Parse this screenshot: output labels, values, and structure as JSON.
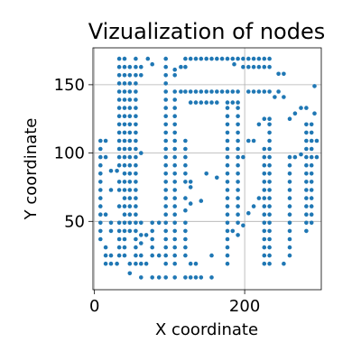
{
  "chart_data": {
    "type": "scatter",
    "title": "Vizualization of nodes",
    "xlabel": "X coordinate",
    "ylabel": "Y coordinate",
    "xlim": [
      -2,
      302
    ],
    "ylim": [
      0,
      177
    ],
    "xticks": [
      0,
      200
    ],
    "yticks": [
      50,
      100,
      150
    ],
    "xtick_labels": [
      "0",
      "200"
    ],
    "ytick_labels": [
      "50",
      "100",
      "150"
    ],
    "grid": true,
    "marker_color": "#1f77b4",
    "points": [
      [
        33,
        169
      ],
      [
        40,
        169
      ],
      [
        55,
        169
      ],
      [
        71,
        169
      ],
      [
        77,
        165
      ],
      [
        95,
        169
      ],
      [
        121,
        169
      ],
      [
        128,
        169
      ],
      [
        135,
        169
      ],
      [
        142,
        169
      ],
      [
        149,
        169
      ],
      [
        156,
        169
      ],
      [
        163,
        169
      ],
      [
        170,
        169
      ],
      [
        177,
        169
      ],
      [
        184,
        169
      ],
      [
        191,
        169
      ],
      [
        198,
        169
      ],
      [
        205,
        169
      ],
      [
        212,
        169
      ],
      [
        219,
        169
      ],
      [
        226,
        169
      ],
      [
        233,
        169
      ],
      [
        33,
        163
      ],
      [
        40,
        163
      ],
      [
        47,
        163
      ],
      [
        55,
        163
      ],
      [
        62,
        163
      ],
      [
        95,
        163
      ],
      [
        107,
        161
      ],
      [
        115,
        163
      ],
      [
        121,
        163
      ],
      [
        186,
        165
      ],
      [
        198,
        163
      ],
      [
        205,
        163
      ],
      [
        212,
        163
      ],
      [
        219,
        163
      ],
      [
        226,
        163
      ],
      [
        233,
        163
      ],
      [
        33,
        157
      ],
      [
        40,
        157
      ],
      [
        47,
        157
      ],
      [
        55,
        157
      ],
      [
        62,
        157
      ],
      [
        95,
        157
      ],
      [
        107,
        157
      ],
      [
        245,
        158
      ],
      [
        252,
        158
      ],
      [
        293,
        149
      ],
      [
        33,
        151
      ],
      [
        40,
        151
      ],
      [
        47,
        151
      ],
      [
        55,
        151
      ],
      [
        95,
        151
      ],
      [
        33,
        145
      ],
      [
        40,
        145
      ],
      [
        47,
        145
      ],
      [
        55,
        145
      ],
      [
        95,
        145
      ],
      [
        107,
        145
      ],
      [
        115,
        145
      ],
      [
        121,
        145
      ],
      [
        128,
        145
      ],
      [
        135,
        145
      ],
      [
        142,
        145
      ],
      [
        149,
        145
      ],
      [
        156,
        145
      ],
      [
        163,
        145
      ],
      [
        170,
        145
      ],
      [
        177,
        145
      ],
      [
        184,
        145
      ],
      [
        191,
        145
      ],
      [
        205,
        145
      ],
      [
        212,
        145
      ],
      [
        219,
        145
      ],
      [
        226,
        145
      ],
      [
        233,
        145
      ],
      [
        240,
        141
      ],
      [
        245,
        145
      ],
      [
        252,
        141
      ],
      [
        33,
        139
      ],
      [
        40,
        139
      ],
      [
        47,
        139
      ],
      [
        55,
        139
      ],
      [
        95,
        139
      ],
      [
        107,
        139
      ],
      [
        128,
        137
      ],
      [
        135,
        137
      ],
      [
        142,
        137
      ],
      [
        149,
        137
      ],
      [
        156,
        137
      ],
      [
        163,
        137
      ],
      [
        177,
        137
      ],
      [
        184,
        137
      ],
      [
        191,
        137
      ],
      [
        33,
        133
      ],
      [
        40,
        133
      ],
      [
        47,
        133
      ],
      [
        55,
        133
      ],
      [
        95,
        133
      ],
      [
        107,
        133
      ],
      [
        177,
        133
      ],
      [
        191,
        133
      ],
      [
        275,
        133
      ],
      [
        282,
        133
      ],
      [
        293,
        129
      ],
      [
        267,
        129
      ],
      [
        33,
        127
      ],
      [
        40,
        127
      ],
      [
        47,
        127
      ],
      [
        55,
        127
      ],
      [
        95,
        127
      ],
      [
        107,
        127
      ],
      [
        177,
        127
      ],
      [
        191,
        127
      ],
      [
        226,
        125
      ],
      [
        233,
        125
      ],
      [
        260,
        125
      ],
      [
        33,
        121
      ],
      [
        40,
        121
      ],
      [
        47,
        121
      ],
      [
        55,
        121
      ],
      [
        95,
        121
      ],
      [
        107,
        121
      ],
      [
        177,
        121
      ],
      [
        191,
        121
      ],
      [
        219,
        121
      ],
      [
        233,
        121
      ],
      [
        282,
        121
      ],
      [
        289,
        121
      ],
      [
        33,
        115
      ],
      [
        40,
        115
      ],
      [
        47,
        115
      ],
      [
        55,
        115
      ],
      [
        95,
        115
      ],
      [
        107,
        115
      ],
      [
        177,
        115
      ],
      [
        191,
        115
      ],
      [
        233,
        115
      ],
      [
        282,
        115
      ],
      [
        289,
        115
      ],
      [
        8,
        109
      ],
      [
        15,
        109
      ],
      [
        33,
        109
      ],
      [
        40,
        109
      ],
      [
        47,
        109
      ],
      [
        55,
        109
      ],
      [
        95,
        109
      ],
      [
        107,
        109
      ],
      [
        121,
        109
      ],
      [
        177,
        109
      ],
      [
        191,
        109
      ],
      [
        205,
        109
      ],
      [
        212,
        109
      ],
      [
        233,
        109
      ],
      [
        282,
        109
      ],
      [
        289,
        109
      ],
      [
        296,
        109
      ],
      [
        8,
        103
      ],
      [
        33,
        103
      ],
      [
        40,
        103
      ],
      [
        47,
        103
      ],
      [
        55,
        103
      ],
      [
        95,
        103
      ],
      [
        107,
        103
      ],
      [
        121,
        103
      ],
      [
        177,
        103
      ],
      [
        191,
        103
      ],
      [
        226,
        103
      ],
      [
        233,
        103
      ],
      [
        282,
        103
      ],
      [
        289,
        103
      ],
      [
        8,
        97
      ],
      [
        15,
        97
      ],
      [
        33,
        97
      ],
      [
        40,
        97
      ],
      [
        47,
        97
      ],
      [
        55,
        97
      ],
      [
        62,
        100
      ],
      [
        95,
        97
      ],
      [
        107,
        97
      ],
      [
        121,
        97
      ],
      [
        177,
        97
      ],
      [
        191,
        97
      ],
      [
        198,
        97
      ],
      [
        226,
        97
      ],
      [
        233,
        97
      ],
      [
        260,
        97
      ],
      [
        267,
        97
      ],
      [
        275,
        99
      ],
      [
        282,
        97
      ],
      [
        289,
        97
      ],
      [
        296,
        97
      ],
      [
        8,
        91
      ],
      [
        33,
        91
      ],
      [
        40,
        91
      ],
      [
        47,
        91
      ],
      [
        55,
        91
      ],
      [
        95,
        91
      ],
      [
        107,
        91
      ],
      [
        121,
        91
      ],
      [
        177,
        91
      ],
      [
        191,
        91
      ],
      [
        226,
        91
      ],
      [
        233,
        91
      ],
      [
        260,
        91
      ],
      [
        282,
        91
      ],
      [
        289,
        91
      ],
      [
        8,
        85
      ],
      [
        22,
        87
      ],
      [
        30,
        87
      ],
      [
        40,
        85
      ],
      [
        47,
        85
      ],
      [
        55,
        85
      ],
      [
        95,
        85
      ],
      [
        107,
        85
      ],
      [
        121,
        85
      ],
      [
        149,
        85
      ],
      [
        177,
        85
      ],
      [
        191,
        85
      ],
      [
        226,
        85
      ],
      [
        233,
        85
      ],
      [
        260,
        85
      ],
      [
        282,
        85
      ],
      [
        289,
        85
      ],
      [
        8,
        79
      ],
      [
        33,
        79
      ],
      [
        40,
        79
      ],
      [
        47,
        79
      ],
      [
        55,
        79
      ],
      [
        95,
        79
      ],
      [
        107,
        79
      ],
      [
        121,
        79
      ],
      [
        128,
        79
      ],
      [
        163,
        82
      ],
      [
        177,
        79
      ],
      [
        191,
        79
      ],
      [
        226,
        79
      ],
      [
        233,
        79
      ],
      [
        260,
        79
      ],
      [
        282,
        79
      ],
      [
        289,
        79
      ],
      [
        8,
        73
      ],
      [
        22,
        73
      ],
      [
        33,
        73
      ],
      [
        40,
        73
      ],
      [
        47,
        73
      ],
      [
        55,
        73
      ],
      [
        95,
        73
      ],
      [
        107,
        73
      ],
      [
        128,
        75
      ],
      [
        177,
        73
      ],
      [
        191,
        73
      ],
      [
        226,
        73
      ],
      [
        233,
        73
      ],
      [
        260,
        73
      ],
      [
        282,
        73
      ],
      [
        289,
        73
      ],
      [
        8,
        67
      ],
      [
        40,
        67
      ],
      [
        47,
        67
      ],
      [
        55,
        67
      ],
      [
        95,
        67
      ],
      [
        107,
        67
      ],
      [
        121,
        67
      ],
      [
        177,
        67
      ],
      [
        191,
        67
      ],
      [
        219,
        67
      ],
      [
        226,
        67
      ],
      [
        233,
        67
      ],
      [
        260,
        67
      ],
      [
        282,
        67
      ],
      [
        289,
        67
      ],
      [
        8,
        61
      ],
      [
        33,
        61
      ],
      [
        40,
        61
      ],
      [
        47,
        61
      ],
      [
        55,
        61
      ],
      [
        95,
        61
      ],
      [
        107,
        61
      ],
      [
        128,
        63
      ],
      [
        142,
        65
      ],
      [
        177,
        61
      ],
      [
        191,
        61
      ],
      [
        212,
        61
      ],
      [
        226,
        61
      ],
      [
        233,
        61
      ],
      [
        260,
        61
      ],
      [
        282,
        61
      ],
      [
        289,
        61
      ],
      [
        8,
        55
      ],
      [
        15,
        55
      ],
      [
        40,
        55
      ],
      [
        47,
        55
      ],
      [
        55,
        55
      ],
      [
        95,
        55
      ],
      [
        107,
        55
      ],
      [
        121,
        58
      ],
      [
        177,
        55
      ],
      [
        191,
        55
      ],
      [
        205,
        56
      ],
      [
        226,
        55
      ],
      [
        233,
        55
      ],
      [
        260,
        55
      ],
      [
        282,
        55
      ],
      [
        289,
        55
      ],
      [
        8,
        49
      ],
      [
        22,
        49
      ],
      [
        33,
        49
      ],
      [
        40,
        49
      ],
      [
        47,
        49
      ],
      [
        55,
        49
      ],
      [
        62,
        49
      ],
      [
        77,
        49
      ],
      [
        86,
        49
      ],
      [
        95,
        49
      ],
      [
        107,
        49
      ],
      [
        121,
        49
      ],
      [
        177,
        49
      ],
      [
        191,
        49
      ],
      [
        198,
        47
      ],
      [
        226,
        49
      ],
      [
        233,
        49
      ],
      [
        260,
        49
      ],
      [
        282,
        49
      ],
      [
        289,
        49
      ],
      [
        8,
        43
      ],
      [
        22,
        43
      ],
      [
        33,
        43
      ],
      [
        40,
        43
      ],
      [
        47,
        43
      ],
      [
        55,
        43
      ],
      [
        62,
        40
      ],
      [
        69,
        40
      ],
      [
        77,
        43
      ],
      [
        95,
        43
      ],
      [
        107,
        43
      ],
      [
        121,
        43
      ],
      [
        177,
        43
      ],
      [
        184,
        43
      ],
      [
        191,
        40
      ],
      [
        226,
        43
      ],
      [
        233,
        43
      ],
      [
        260,
        43
      ],
      [
        282,
        43
      ],
      [
        8,
        37
      ],
      [
        33,
        37
      ],
      [
        40,
        37
      ],
      [
        55,
        37
      ],
      [
        62,
        34
      ],
      [
        77,
        37
      ],
      [
        95,
        37
      ],
      [
        107,
        37
      ],
      [
        121,
        37
      ],
      [
        177,
        37
      ],
      [
        226,
        37
      ],
      [
        233,
        37
      ],
      [
        260,
        37
      ],
      [
        15,
        31
      ],
      [
        33,
        31
      ],
      [
        40,
        31
      ],
      [
        55,
        31
      ],
      [
        77,
        31
      ],
      [
        95,
        31
      ],
      [
        107,
        31
      ],
      [
        121,
        31
      ],
      [
        177,
        31
      ],
      [
        226,
        31
      ],
      [
        233,
        31
      ],
      [
        260,
        31
      ],
      [
        15,
        25
      ],
      [
        22,
        25
      ],
      [
        33,
        25
      ],
      [
        40,
        25
      ],
      [
        55,
        25
      ],
      [
        62,
        25
      ],
      [
        77,
        25
      ],
      [
        86,
        25
      ],
      [
        95,
        25
      ],
      [
        107,
        25
      ],
      [
        121,
        25
      ],
      [
        156,
        25
      ],
      [
        177,
        25
      ],
      [
        226,
        25
      ],
      [
        233,
        25
      ],
      [
        260,
        25
      ],
      [
        15,
        19
      ],
      [
        22,
        19
      ],
      [
        30,
        19
      ],
      [
        47,
        19
      ],
      [
        55,
        19
      ],
      [
        62,
        19
      ],
      [
        69,
        19
      ],
      [
        95,
        19
      ],
      [
        107,
        19
      ],
      [
        128,
        19
      ],
      [
        135,
        19
      ],
      [
        177,
        19
      ],
      [
        226,
        19
      ],
      [
        233,
        19
      ],
      [
        252,
        19
      ],
      [
        47,
        12
      ],
      [
        62,
        9
      ],
      [
        77,
        9
      ],
      [
        86,
        9
      ],
      [
        95,
        9
      ],
      [
        107,
        9
      ],
      [
        121,
        9
      ],
      [
        128,
        9
      ],
      [
        135,
        9
      ],
      [
        142,
        9
      ],
      [
        156,
        9
      ]
    ]
  }
}
